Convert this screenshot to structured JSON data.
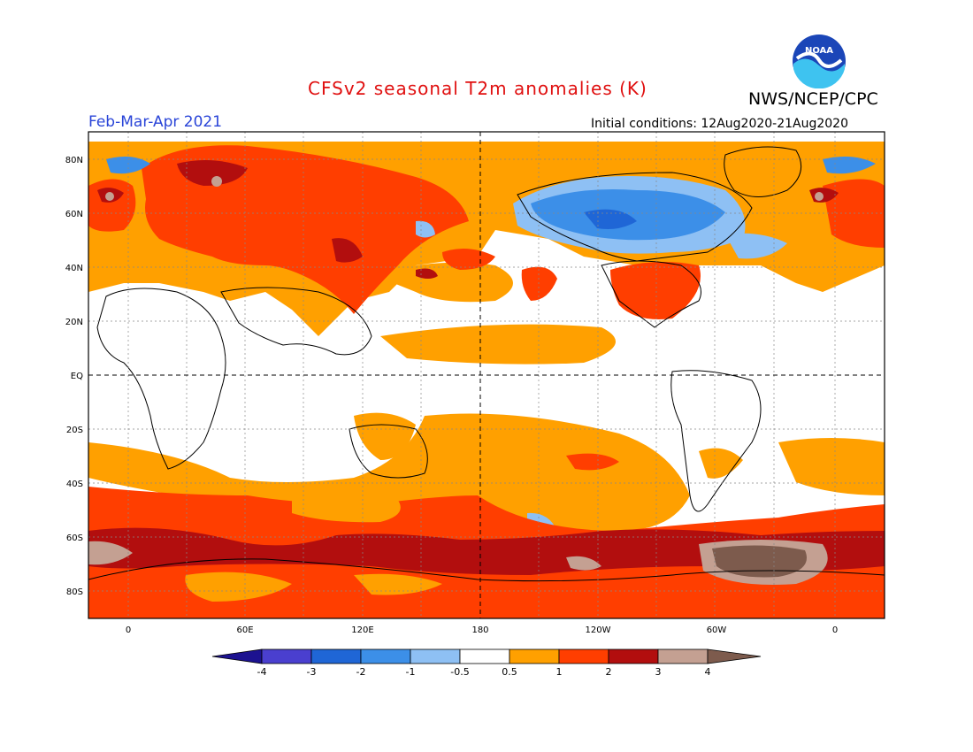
{
  "header": {
    "title": "CFSv2 seasonal T2m anomalies (K)",
    "organization": "NWS/NCEP/CPC",
    "logo_text": "NOAA",
    "season": "Feb-Mar-Apr 2021",
    "initial_conditions": "Initial conditions: 12Aug2020-21Aug2020"
  },
  "colors": {
    "title": "#e01010",
    "season": "#2a45d8",
    "ocean_background": "#ffffff"
  },
  "map": {
    "lat_labels": [
      "80N",
      "60N",
      "40N",
      "20N",
      "EQ",
      "20S",
      "40S",
      "60S",
      "80S"
    ],
    "lon_labels": [
      "0",
      "60E",
      "120E",
      "180",
      "120W",
      "60W",
      "0"
    ]
  },
  "colorbar": {
    "tick_labels": [
      "-4",
      "-3",
      "-2",
      "-1",
      "-0.5",
      "0.5",
      "1",
      "2",
      "3",
      "4"
    ],
    "colors": [
      "#1c1290",
      "#4a3fcf",
      "#1f66d6",
      "#3c8fe8",
      "#8ec0f4",
      "#ffffff",
      "#ffa000",
      "#ff3e00",
      "#b20e0e",
      "#c4a092",
      "#7d5b4d"
    ]
  }
}
